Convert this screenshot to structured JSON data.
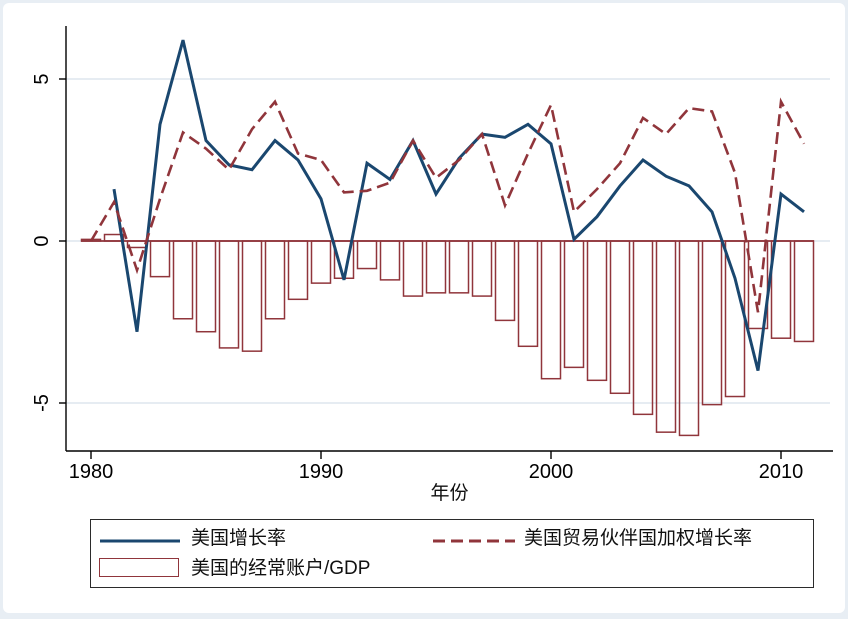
{
  "axes": {
    "x_title": "年份",
    "x_tick_labels": [
      "1980",
      "1990",
      "2000",
      "2010"
    ],
    "y_tick_labels": [
      "5",
      "0",
      "-5"
    ]
  },
  "legend": {
    "row1_left_label": "美国增长率",
    "row1_right_label": "美国贸易伙伴国加权增长率",
    "row2_label": "美国的经常账户/GDP"
  },
  "chart_data": {
    "type": "composite",
    "title": "",
    "xlabel": "年份",
    "ylabel": "",
    "x_range": [
      1980,
      2011
    ],
    "xticks": [
      1980,
      1990,
      2000,
      2010
    ],
    "yticks": [
      5,
      0,
      -5
    ],
    "ylim": [
      -6.5,
      6.6
    ],
    "grid": "horizontal",
    "legend_position": "bottom",
    "colors": {
      "navy": "#1a476f",
      "maroon": "#90353b",
      "grid": "#e2eaf1",
      "axis": "#000000",
      "frame": "#e8eef4",
      "plot_bg": "#ffffff"
    },
    "series": [
      {
        "key": "us-growth",
        "name": "美国增长率",
        "type": "line",
        "style": "solid",
        "color": "#1a476f",
        "start_year": 1981,
        "values": [
          1.6,
          -2.8,
          3.6,
          6.2,
          3.1,
          2.35,
          2.2,
          3.1,
          2.5,
          1.3,
          -1.2,
          2.4,
          1.9,
          3.1,
          1.45,
          2.55,
          3.3,
          3.2,
          3.6,
          3.0,
          0.05,
          0.75,
          1.7,
          2.5,
          2.0,
          1.7,
          0.9,
          -1.15,
          -4.0,
          1.45,
          0.9
        ]
      },
      {
        "key": "partners-growth",
        "name": "美国贸易伙伴国加权增长率",
        "type": "line",
        "style": "dashed",
        "color": "#90353b",
        "start_year": 1980,
        "values": [
          0.0,
          1.2,
          -0.9,
          1.3,
          3.35,
          2.85,
          2.2,
          3.45,
          4.3,
          2.7,
          2.5,
          1.5,
          1.55,
          1.8,
          3.1,
          1.95,
          2.5,
          3.3,
          1.1,
          2.7,
          4.2,
          0.9,
          1.6,
          2.4,
          3.8,
          3.3,
          4.1,
          4.0,
          2.1,
          -2.2,
          4.3,
          3.0
        ]
      },
      {
        "key": "current-account",
        "name": "美国的经常账户/GDP",
        "type": "bar",
        "style": "hollow",
        "color": "#90353b",
        "start_year": 1980,
        "values": [
          0.05,
          0.2,
          -0.2,
          -1.1,
          -2.4,
          -2.8,
          -3.3,
          -3.4,
          -2.4,
          -1.8,
          -1.3,
          -1.15,
          -0.85,
          -1.2,
          -1.7,
          -1.6,
          -1.6,
          -1.7,
          -2.45,
          -3.25,
          -4.25,
          -3.9,
          -4.3,
          -4.7,
          -5.35,
          -5.9,
          -6.0,
          -5.05,
          -4.8,
          -2.7,
          -3.0,
          -3.1
        ]
      }
    ]
  }
}
